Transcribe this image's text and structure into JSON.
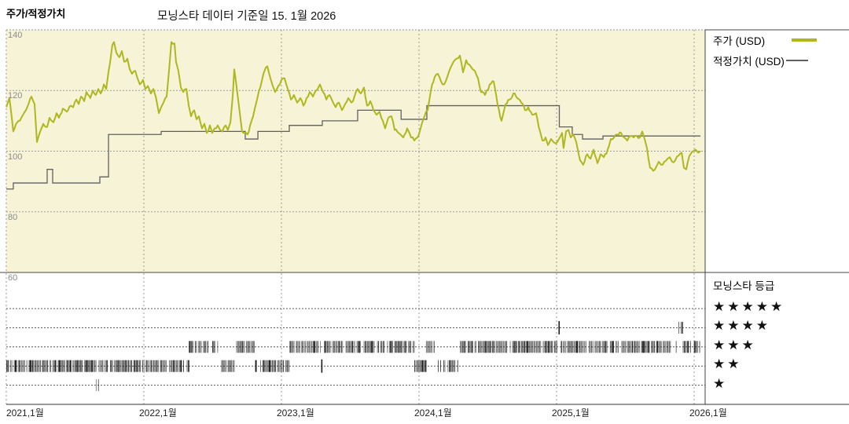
{
  "header": {
    "title": "주가/적정가치",
    "subtitle": "모닝스타 데이터 기준일 15. 1월 2026"
  },
  "legend": {
    "price_label": "주가 (USD)",
    "fair_value_label": "적정가치 (USD)"
  },
  "rating_panel": {
    "title": "모닝스타 등급",
    "star_char": "★",
    "rows": [
      5,
      4,
      3,
      2,
      1
    ]
  },
  "colors": {
    "price": "#aeb71f",
    "fair_value": "#606060",
    "plot_bg": "#f7f3d6",
    "grid": "#9a9a9a",
    "row_grid": "#555555",
    "frame": "#444444",
    "tick_mark": "#1b1b1b",
    "axis_text": "#8b8b8b",
    "x_text": "#222222"
  },
  "render": {
    "noise_seed": 11,
    "price_noise": 0.55,
    "tick_height": 15,
    "tick_density": 0.78
  },
  "chart_data": {
    "type": "line",
    "title": "주가/적정가치",
    "subtitle": "모닝스타 데이터 기준일 15. 1월 2026",
    "x_axis": {
      "range": [
        2021.0,
        2026.05
      ],
      "ticks": [
        {
          "t": 2021,
          "label": "2021,1월"
        },
        {
          "t": 2022,
          "label": "2022,1월"
        },
        {
          "t": 2023,
          "label": "2023,1월"
        },
        {
          "t": 2024,
          "label": "2024,1월"
        },
        {
          "t": 2025,
          "label": "2025,1월"
        },
        {
          "t": 2026,
          "label": "2026,1월"
        }
      ]
    },
    "y_axis": {
      "range": [
        60,
        140
      ],
      "ticks": [
        140,
        120,
        100,
        80,
        60
      ],
      "grid": true
    },
    "legend_position": "top-right",
    "series": [
      {
        "name": "주가 (USD)",
        "type": "line",
        "points": [
          [
            2021.0,
            114.5
          ],
          [
            2021.023,
            117.5
          ],
          [
            2021.051,
            106.5
          ],
          [
            2021.08,
            109.5
          ],
          [
            2021.109,
            111
          ],
          [
            2021.143,
            113.5
          ],
          [
            2021.183,
            118
          ],
          [
            2021.206,
            115.5
          ],
          [
            2021.223,
            103
          ],
          [
            2021.251,
            107
          ],
          [
            2021.269,
            109
          ],
          [
            2021.297,
            108
          ],
          [
            2021.314,
            111
          ],
          [
            2021.343,
            109.5
          ],
          [
            2021.366,
            112.5
          ],
          [
            2021.383,
            111
          ],
          [
            2021.411,
            114
          ],
          [
            2021.44,
            113
          ],
          [
            2021.469,
            115
          ],
          [
            2021.486,
            114.5
          ],
          [
            2021.509,
            117
          ],
          [
            2021.526,
            115.5
          ],
          [
            2021.543,
            118
          ],
          [
            2021.566,
            116.5
          ],
          [
            2021.583,
            119.5
          ],
          [
            2021.611,
            117.5
          ],
          [
            2021.629,
            120
          ],
          [
            2021.651,
            118.5
          ],
          [
            2021.669,
            120.5
          ],
          [
            2021.686,
            119
          ],
          [
            2021.709,
            122
          ],
          [
            2021.726,
            120.5
          ],
          [
            2021.754,
            129
          ],
          [
            2021.771,
            135
          ],
          [
            2021.783,
            136
          ],
          [
            2021.8,
            132.5
          ],
          [
            2021.823,
            131
          ],
          [
            2021.84,
            133
          ],
          [
            2021.857,
            129.5
          ],
          [
            2021.88,
            130.5
          ],
          [
            2021.897,
            127
          ],
          [
            2021.914,
            125.5
          ],
          [
            2021.937,
            126.5
          ],
          [
            2021.954,
            124
          ],
          [
            2021.971,
            122
          ],
          [
            2021.994,
            123.5
          ],
          [
            2022.011,
            120.5
          ],
          [
            2022.029,
            121.5
          ],
          [
            2022.051,
            119
          ],
          [
            2022.069,
            120.5
          ],
          [
            2022.086,
            118
          ],
          [
            2022.109,
            112.5
          ],
          [
            2022.126,
            114.5
          ],
          [
            2022.143,
            116
          ],
          [
            2022.166,
            118
          ],
          [
            2022.183,
            126.5
          ],
          [
            2022.2,
            136
          ],
          [
            2022.223,
            135.5
          ],
          [
            2022.234,
            129.5
          ],
          [
            2022.251,
            126.5
          ],
          [
            2022.269,
            121
          ],
          [
            2022.286,
            119.5
          ],
          [
            2022.309,
            120.5
          ],
          [
            2022.326,
            115
          ],
          [
            2022.343,
            111.5
          ],
          [
            2022.366,
            113.5
          ],
          [
            2022.383,
            110.5
          ],
          [
            2022.4,
            111.5
          ],
          [
            2022.423,
            107.5
          ],
          [
            2022.44,
            109
          ],
          [
            2022.457,
            106
          ],
          [
            2022.48,
            108.5
          ],
          [
            2022.497,
            106
          ],
          [
            2022.514,
            107.5
          ],
          [
            2022.537,
            108.5
          ],
          [
            2022.554,
            107
          ],
          [
            2022.571,
            106.5
          ],
          [
            2022.594,
            108.5
          ],
          [
            2022.611,
            107
          ],
          [
            2022.629,
            109.5
          ],
          [
            2022.646,
            118
          ],
          [
            2022.657,
            127
          ],
          [
            2022.669,
            123
          ],
          [
            2022.691,
            115
          ],
          [
            2022.714,
            106.5
          ],
          [
            2022.754,
            105.5
          ],
          [
            2022.783,
            110
          ],
          [
            2022.817,
            116
          ],
          [
            2022.846,
            121
          ],
          [
            2022.869,
            125.5
          ],
          [
            2022.886,
            127.5
          ],
          [
            2022.897,
            128
          ],
          [
            2022.92,
            124
          ],
          [
            2022.937,
            121.5
          ],
          [
            2022.954,
            119.5
          ],
          [
            2022.977,
            121.5
          ],
          [
            2023.0,
            123.5
          ],
          [
            2023.023,
            124
          ],
          [
            2023.046,
            120.5
          ],
          [
            2023.069,
            117
          ],
          [
            2023.091,
            118.5
          ],
          [
            2023.114,
            116
          ],
          [
            2023.137,
            117.5
          ],
          [
            2023.16,
            115
          ],
          [
            2023.183,
            117.5
          ],
          [
            2023.206,
            119.5
          ],
          [
            2023.229,
            118
          ],
          [
            2023.251,
            120
          ],
          [
            2023.28,
            122
          ],
          [
            2023.303,
            119.5
          ],
          [
            2023.326,
            117
          ],
          [
            2023.349,
            118.5
          ],
          [
            2023.371,
            116.5
          ],
          [
            2023.394,
            114.5
          ],
          [
            2023.417,
            116
          ],
          [
            2023.44,
            113.5
          ],
          [
            2023.463,
            115.5
          ],
          [
            2023.486,
            117.5
          ],
          [
            2023.509,
            116
          ],
          [
            2023.531,
            118
          ],
          [
            2023.554,
            120.5
          ],
          [
            2023.577,
            119
          ],
          [
            2023.6,
            121
          ],
          [
            2023.623,
            115
          ],
          [
            2023.646,
            116.5
          ],
          [
            2023.669,
            113.5
          ],
          [
            2023.691,
            112
          ],
          [
            2023.714,
            113
          ],
          [
            2023.737,
            110
          ],
          [
            2023.754,
            107.5
          ],
          [
            2023.777,
            111
          ],
          [
            2023.8,
            111.5
          ],
          [
            2023.823,
            107
          ],
          [
            2023.851,
            106
          ],
          [
            2023.886,
            104.5
          ],
          [
            2023.914,
            107.5
          ],
          [
            2023.943,
            104.5
          ],
          [
            2023.966,
            103.5
          ],
          [
            2023.989,
            104.5
          ],
          [
            2024.017,
            108.5
          ],
          [
            2024.04,
            111.5
          ],
          [
            2024.063,
            113.5
          ],
          [
            2024.086,
            120
          ],
          [
            2024.114,
            124.5
          ],
          [
            2024.137,
            125.5
          ],
          [
            2024.16,
            123
          ],
          [
            2024.183,
            122
          ],
          [
            2024.206,
            124.5
          ],
          [
            2024.229,
            127.5
          ],
          [
            2024.251,
            129.5
          ],
          [
            2024.274,
            130.5
          ],
          [
            2024.297,
            131.5
          ],
          [
            2024.32,
            126
          ],
          [
            2024.343,
            130
          ],
          [
            2024.366,
            128.5
          ],
          [
            2024.389,
            127
          ],
          [
            2024.406,
            126.5
          ],
          [
            2024.429,
            124
          ],
          [
            2024.451,
            119.5
          ],
          [
            2024.48,
            118.5
          ],
          [
            2024.514,
            122
          ],
          [
            2024.543,
            123
          ],
          [
            2024.571,
            115.5
          ],
          [
            2024.6,
            110
          ],
          [
            2024.629,
            115.5
          ],
          [
            2024.657,
            117
          ],
          [
            2024.686,
            119
          ],
          [
            2024.714,
            117.5
          ],
          [
            2024.743,
            116
          ],
          [
            2024.771,
            113.5
          ],
          [
            2024.794,
            114.5
          ],
          [
            2024.823,
            112
          ],
          [
            2024.851,
            112.5
          ],
          [
            2024.88,
            106.5
          ],
          [
            2024.897,
            103.5
          ],
          [
            2024.92,
            104.5
          ],
          [
            2024.937,
            102
          ],
          [
            2024.96,
            104
          ],
          [
            2024.977,
            103
          ],
          [
            2024.994,
            102.5
          ],
          [
            2025.017,
            104
          ],
          [
            2025.04,
            106
          ],
          [
            2025.051,
            101
          ],
          [
            2025.069,
            106.5
          ],
          [
            2025.086,
            107
          ],
          [
            2025.103,
            104.5
          ],
          [
            2025.12,
            105.5
          ],
          [
            2025.143,
            103
          ],
          [
            2025.171,
            97
          ],
          [
            2025.194,
            95.5
          ],
          [
            2025.223,
            99
          ],
          [
            2025.246,
            97.5
          ],
          [
            2025.269,
            100.5
          ],
          [
            2025.297,
            96
          ],
          [
            2025.32,
            99
          ],
          [
            2025.343,
            98
          ],
          [
            2025.371,
            100.5
          ],
          [
            2025.394,
            104
          ],
          [
            2025.417,
            104.5
          ],
          [
            2025.44,
            105.5
          ],
          [
            2025.469,
            106
          ],
          [
            2025.491,
            104.5
          ],
          [
            2025.514,
            103.5
          ],
          [
            2025.537,
            105
          ],
          [
            2025.56,
            104.5
          ],
          [
            2025.583,
            105
          ],
          [
            2025.606,
            104.5
          ],
          [
            2025.623,
            106.5
          ],
          [
            2025.64,
            104
          ],
          [
            2025.657,
            101
          ],
          [
            2025.68,
            94.5
          ],
          [
            2025.703,
            93.5
          ],
          [
            2025.726,
            95
          ],
          [
            2025.743,
            96.5
          ],
          [
            2025.76,
            95.5
          ],
          [
            2025.783,
            96.5
          ],
          [
            2025.806,
            97.5
          ],
          [
            2025.823,
            98
          ],
          [
            2025.84,
            96.5
          ],
          [
            2025.863,
            97
          ],
          [
            2025.886,
            98.5
          ],
          [
            2025.909,
            99.5
          ],
          [
            2025.926,
            94.5
          ],
          [
            2025.943,
            94
          ],
          [
            2025.966,
            98.5
          ],
          [
            2025.994,
            100
          ],
          [
            2026.011,
            100.5
          ],
          [
            2026.029,
            99.5
          ],
          [
            2026.046,
            100
          ]
        ]
      },
      {
        "name": "적정가치 (USD)",
        "type": "step",
        "points": [
          [
            2021.0,
            87.5
          ],
          [
            2021.051,
            89.5
          ],
          [
            2021.297,
            94
          ],
          [
            2021.337,
            89.5
          ],
          [
            2021.68,
            91.5
          ],
          [
            2021.743,
            105.5
          ],
          [
            2022.126,
            106.5
          ],
          [
            2022.737,
            104
          ],
          [
            2022.829,
            106.5
          ],
          [
            2023.057,
            108.5
          ],
          [
            2023.297,
            110
          ],
          [
            2023.554,
            113.5
          ],
          [
            2023.87,
            110.5
          ],
          [
            2024.057,
            115
          ],
          [
            2025.02,
            108
          ],
          [
            2025.114,
            105.5
          ],
          [
            2025.189,
            104
          ],
          [
            2025.337,
            105
          ],
          [
            2026.046,
            105
          ]
        ]
      }
    ],
    "rating_timeline": {
      "rows": [
        5,
        4,
        3,
        2,
        1
      ],
      "bands": [
        {
          "stars": 2,
          "from": 2021.0,
          "to": 2021.651
        },
        {
          "stars": 1,
          "from": 2021.651,
          "to": 2021.671
        },
        {
          "stars": 2,
          "from": 2021.671,
          "to": 2022.326
        },
        {
          "stars": 3,
          "from": 2022.326,
          "to": 2022.537
        },
        {
          "stars": 2,
          "from": 2022.537,
          "to": 2022.657
        },
        {
          "stars": 3,
          "from": 2022.663,
          "to": 2022.8
        },
        {
          "stars": 2,
          "from": 2022.8,
          "to": 2023.057
        },
        {
          "stars": 3,
          "from": 2023.057,
          "to": 2023.286
        },
        {
          "stars": 2,
          "from": 2023.289,
          "to": 2023.3
        },
        {
          "stars": 3,
          "from": 2023.303,
          "to": 2023.966
        },
        {
          "stars": 2,
          "from": 2023.966,
          "to": 2024.051
        },
        {
          "stars": 3,
          "from": 2024.051,
          "to": 2024.109
        },
        {
          "stars": 2,
          "from": 2024.137,
          "to": 2024.286
        },
        {
          "stars": 3,
          "from": 2024.297,
          "to": 2025.011
        },
        {
          "stars": 4,
          "from": 2025.014,
          "to": 2025.029
        },
        {
          "stars": 3,
          "from": 2025.031,
          "to": 2025.874
        },
        {
          "stars": 4,
          "from": 2025.886,
          "to": 2025.914
        },
        {
          "stars": 3,
          "from": 2025.917,
          "to": 2026.04
        }
      ]
    }
  }
}
